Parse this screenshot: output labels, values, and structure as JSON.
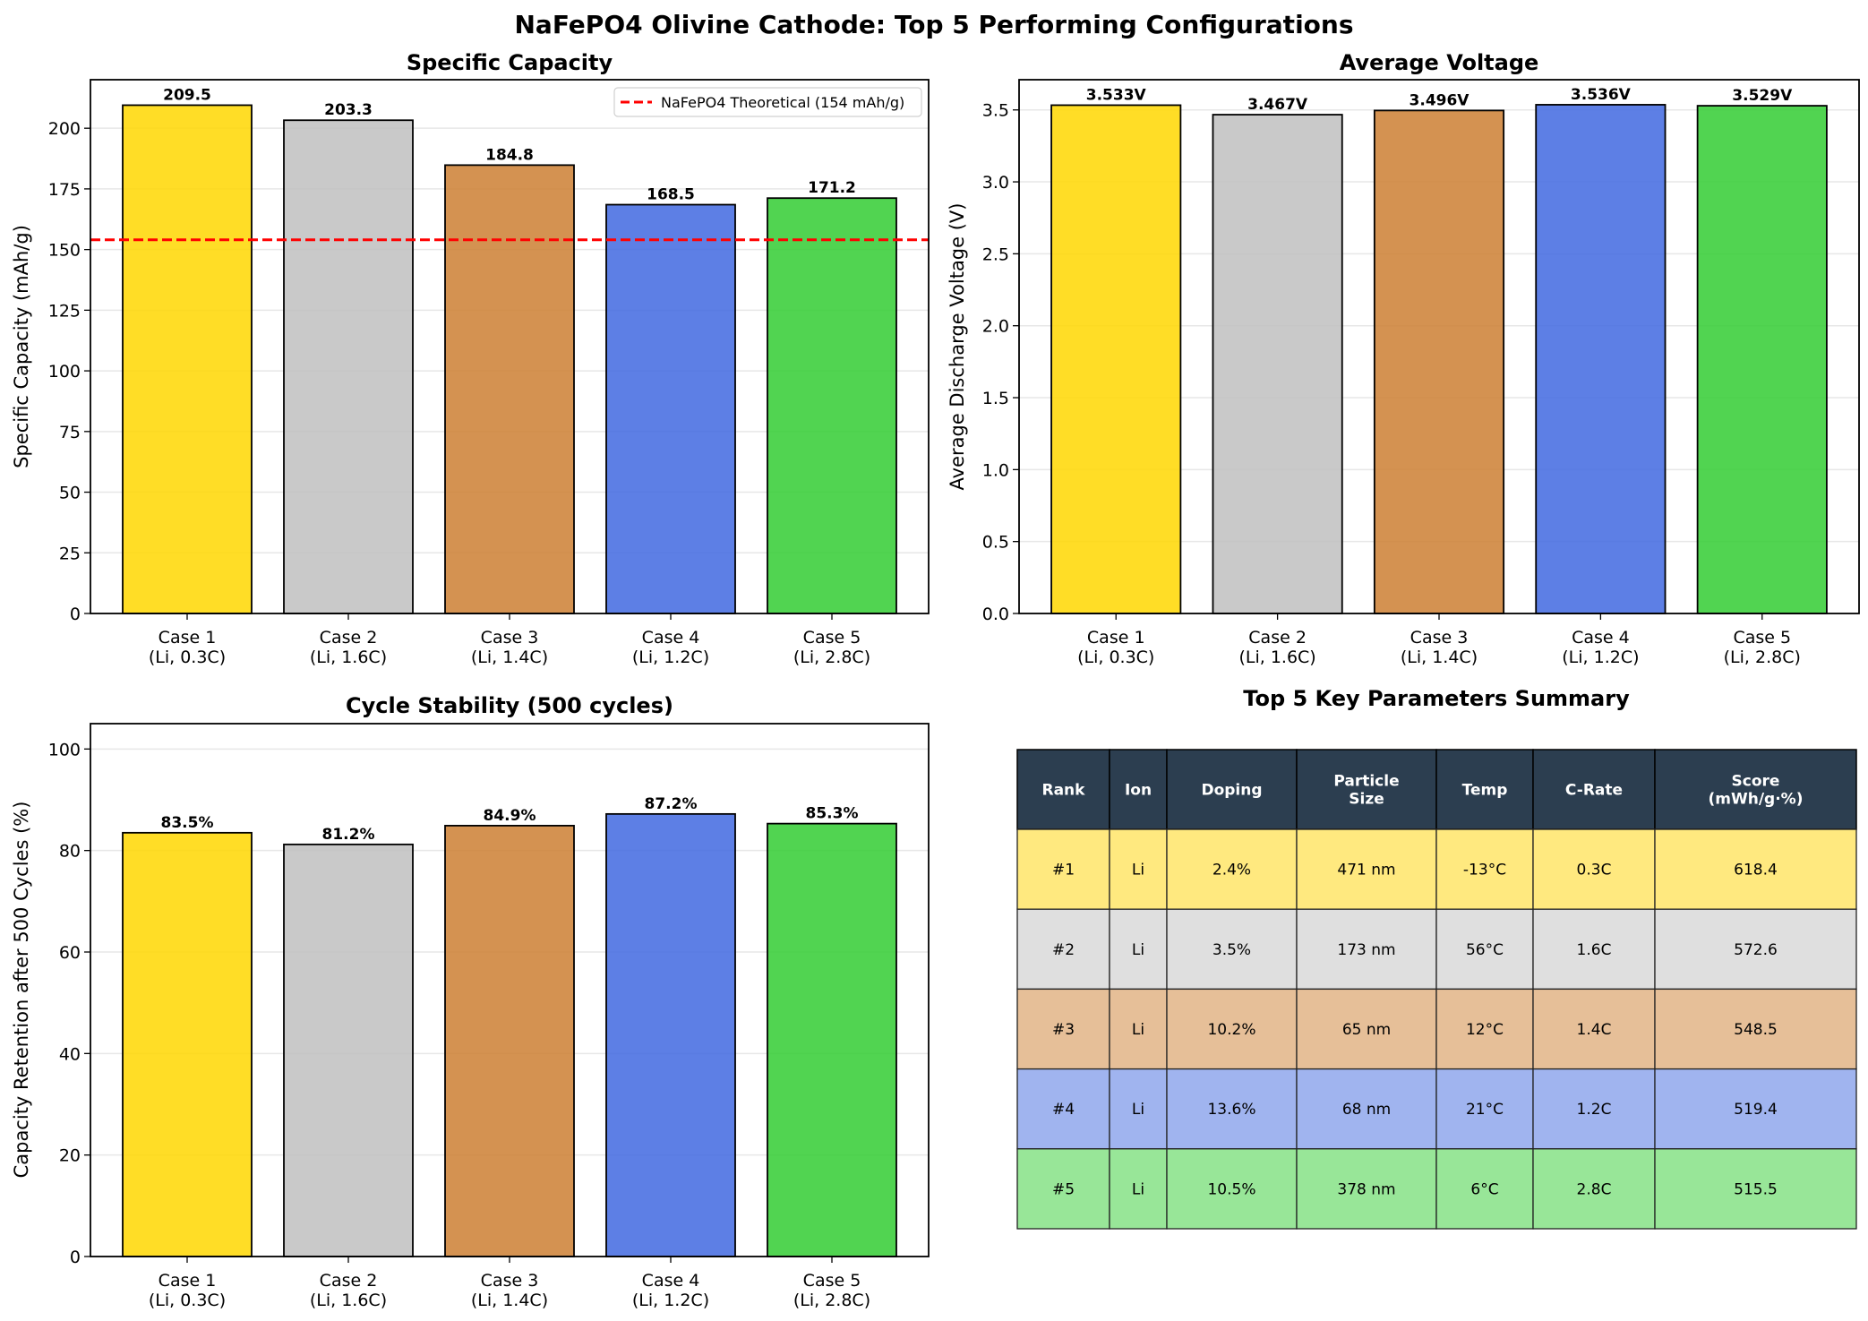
{
  "suptitle": "NaFePO4 Olivine Cathode: Top 5 Performing Configurations",
  "colors": {
    "bars": [
      "#FFD700",
      "#C0C0C0",
      "#CD7F32",
      "#4169E1",
      "#32CD32"
    ],
    "bar_alpha": 0.85,
    "table_header": "#2C3E50",
    "table_rows": [
      "#FFE97F",
      "#DFDFDF",
      "#E6BF98",
      "#A0B4EF",
      "#98E698"
    ],
    "reference_line": "#FF0000"
  },
  "chart_data": [
    {
      "type": "bar",
      "title": "Specific Capacity",
      "xlabel": "",
      "ylabel": "Specific Capacity (mAh/g)",
      "categories": [
        "Case 1\n(Li, 0.3C)",
        "Case 2\n(Li, 1.6C)",
        "Case 3\n(Li, 1.4C)",
        "Case 4\n(Li, 1.2C)",
        "Case 5\n(Li, 2.8C)"
      ],
      "values": [
        209.5,
        203.3,
        184.8,
        168.5,
        171.2
      ],
      "value_labels": [
        "209.5",
        "203.3",
        "184.8",
        "168.5",
        "171.2"
      ],
      "ylim": [
        0,
        220
      ],
      "yticks": [
        0,
        25,
        50,
        75,
        100,
        125,
        150,
        175,
        200
      ],
      "grid": "y",
      "reference_line": {
        "y": 154,
        "label": "NaFePO4 Theoretical (154 mAh/g)",
        "style": "dashed"
      },
      "legend": "top-right"
    },
    {
      "type": "bar",
      "title": "Average Voltage",
      "xlabel": "",
      "ylabel": "Average Discharge Voltage (V)",
      "categories": [
        "Case 1\n(Li, 0.3C)",
        "Case 2\n(Li, 1.6C)",
        "Case 3\n(Li, 1.4C)",
        "Case 4\n(Li, 1.2C)",
        "Case 5\n(Li, 2.8C)"
      ],
      "values": [
        3.533,
        3.467,
        3.496,
        3.536,
        3.529
      ],
      "value_labels": [
        "3.533V",
        "3.467V",
        "3.496V",
        "3.536V",
        "3.529V"
      ],
      "ylim": [
        0,
        3.71
      ],
      "yticks": [
        0.0,
        0.5,
        1.0,
        1.5,
        2.0,
        2.5,
        3.0,
        3.5
      ],
      "ytick_labels": [
        "0.0",
        "0.5",
        "1.0",
        "1.5",
        "2.0",
        "2.5",
        "3.0",
        "3.5"
      ],
      "grid": "y"
    },
    {
      "type": "bar",
      "title": "Cycle Stability (500 cycles)",
      "xlabel": "",
      "ylabel": "Capacity Retention after 500 Cycles (%)",
      "categories": [
        "Case 1\n(Li, 0.3C)",
        "Case 2\n(Li, 1.6C)",
        "Case 3\n(Li, 1.4C)",
        "Case 4\n(Li, 1.2C)",
        "Case 5\n(Li, 2.8C)"
      ],
      "values": [
        83.5,
        81.2,
        84.9,
        87.2,
        85.3
      ],
      "value_labels": [
        "83.5%",
        "81.2%",
        "84.9%",
        "87.2%",
        "85.3%"
      ],
      "ylim": [
        0,
        105
      ],
      "yticks": [
        0,
        20,
        40,
        60,
        80,
        100
      ],
      "grid": "y"
    },
    {
      "type": "table",
      "title": "Top 5 Key Parameters Summary",
      "columns": [
        "Rank",
        "Ion",
        "Doping",
        "Particle\nSize",
        "Temp",
        "C-Rate",
        "Score\n(mWh/g·%)"
      ],
      "rows": [
        [
          "#1",
          "Li",
          "2.4%",
          "471 nm",
          "-13°C",
          "0.3C",
          "618.4"
        ],
        [
          "#2",
          "Li",
          "3.5%",
          "173 nm",
          "56°C",
          "1.6C",
          "572.6"
        ],
        [
          "#3",
          "Li",
          "10.2%",
          "65 nm",
          "12°C",
          "1.4C",
          "548.5"
        ],
        [
          "#4",
          "Li",
          "13.6%",
          "68 nm",
          "21°C",
          "1.2C",
          "519.4"
        ],
        [
          "#5",
          "Li",
          "10.5%",
          "378 nm",
          "6°C",
          "2.8C",
          "515.5"
        ]
      ]
    }
  ]
}
